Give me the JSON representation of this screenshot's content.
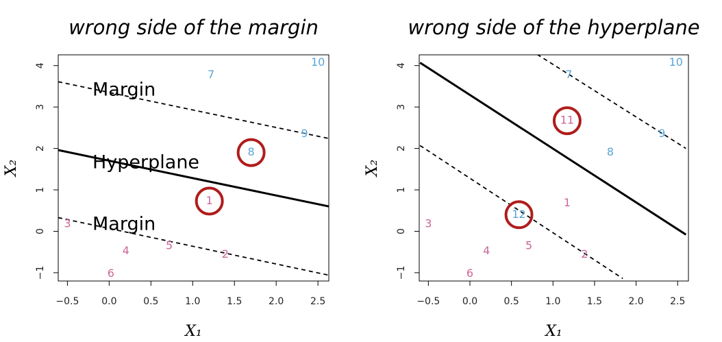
{
  "chart_data": [
    {
      "type": "scatter",
      "title": "wrong side of the margin",
      "xlabel": "X₁",
      "ylabel": "X₂",
      "xlim": [
        -0.61,
        2.63
      ],
      "ylim": [
        -1.2,
        4.26
      ],
      "xticks": [
        {
          "value": -0.5,
          "label": "−0.5"
        },
        {
          "value": 0,
          "label": "0.0"
        },
        0.5,
        {
          "value": 1,
          "label": "1.0"
        },
        1.5,
        {
          "value": 2,
          "label": "2.0"
        },
        2.5
      ],
      "yticks": [
        {
          "value": -1,
          "label": "−1"
        },
        0,
        1,
        2,
        3,
        4
      ],
      "points": {
        "labels": [
          "1",
          "2",
          "3",
          "4",
          "5",
          "6",
          "7",
          "8",
          "9",
          "10"
        ],
        "x": [
          1.2,
          1.39,
          -0.5,
          0.2,
          0.72,
          0.02,
          1.22,
          1.7,
          2.34,
          2.5
        ],
        "y": [
          0.73,
          -0.56,
          0.17,
          -0.48,
          -0.36,
          -1.03,
          3.77,
          1.9,
          2.35,
          4.07
        ],
        "colors": [
          "#cc6699",
          "#cc6699",
          "#cc6699",
          "#cc6699",
          "#cc6699",
          "#cc6699",
          "#5aa5d8",
          "#5aa5d8",
          "#5aa5d8",
          "#5aa5d8"
        ],
        "circled": [
          true,
          false,
          false,
          false,
          false,
          false,
          false,
          true,
          false,
          false
        ]
      },
      "lines": [
        {
          "x": [
            -0.61,
            2.63
          ],
          "y": [
            1.96,
            0.6
          ],
          "style": "solid"
        },
        {
          "x": [
            -0.61,
            2.63
          ],
          "y": [
            3.61,
            2.24
          ],
          "style": "dashed"
        },
        {
          "x": [
            -0.61,
            2.63
          ],
          "y": [
            0.33,
            -1.06
          ],
          "style": "dashed"
        }
      ],
      "annotations": [
        "Margin",
        "Hyperplane",
        "Margin"
      ]
    },
    {
      "type": "scatter",
      "title": "wrong side of the hyperplane",
      "xlabel": "X₁",
      "ylabel": "X₂",
      "xlim": [
        -0.61,
        2.63
      ],
      "ylim": [
        -1.2,
        4.26
      ],
      "xticks": [
        {
          "value": -0.5,
          "label": "−0.5"
        },
        {
          "value": 0,
          "label": "0.0"
        },
        0.5,
        {
          "value": 1,
          "label": "1.0"
        },
        1.5,
        {
          "value": 2,
          "label": "2.0"
        },
        2.5
      ],
      "yticks": [
        {
          "value": -1,
          "label": "−1"
        },
        0,
        1,
        2,
        3,
        4
      ],
      "points": {
        "labels": [
          "1",
          "2",
          "3",
          "4",
          "5",
          "6",
          "7",
          "8",
          "9",
          "10",
          "11",
          "12"
        ],
        "x": [
          1.17,
          1.38,
          -0.5,
          0.2,
          0.71,
          0,
          1.19,
          1.69,
          2.31,
          2.48,
          1.17,
          0.59
        ],
        "y": [
          0.68,
          -0.56,
          0.17,
          -0.48,
          -0.36,
          -1.03,
          3.77,
          1.9,
          2.35,
          4.07,
          2.67,
          0.4
        ],
        "colors": [
          "#cc6699",
          "#cc6699",
          "#cc6699",
          "#cc6699",
          "#cc6699",
          "#cc6699",
          "#5aa5d8",
          "#5aa5d8",
          "#5aa5d8",
          "#5aa5d8",
          "#cc6699",
          "#5aa5d8"
        ],
        "circled": [
          false,
          false,
          false,
          false,
          false,
          false,
          false,
          false,
          false,
          false,
          true,
          true
        ]
      },
      "lines": [
        {
          "x": [
            -0.6,
            2.6
          ],
          "y": [
            4.07,
            -0.08
          ],
          "style": "solid"
        },
        {
          "x": [
            0.81,
            2.6
          ],
          "y": [
            4.27,
            2.0
          ],
          "style": "dashed"
        },
        {
          "x": [
            -0.6,
            1.84
          ],
          "y": [
            2.07,
            -1.14
          ],
          "style": "dashed"
        }
      ],
      "annotations": []
    }
  ]
}
